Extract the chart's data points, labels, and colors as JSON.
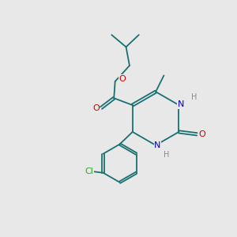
{
  "bg_color": "#e8e8e8",
  "bond_color": "#1a7070",
  "atom_colors": {
    "O": "#cc0000",
    "N": "#0000cc",
    "Cl": "#22aa22",
    "H": "#888888",
    "C": "#1a7070"
  },
  "font_size": 8.0,
  "bond_width": 1.3
}
